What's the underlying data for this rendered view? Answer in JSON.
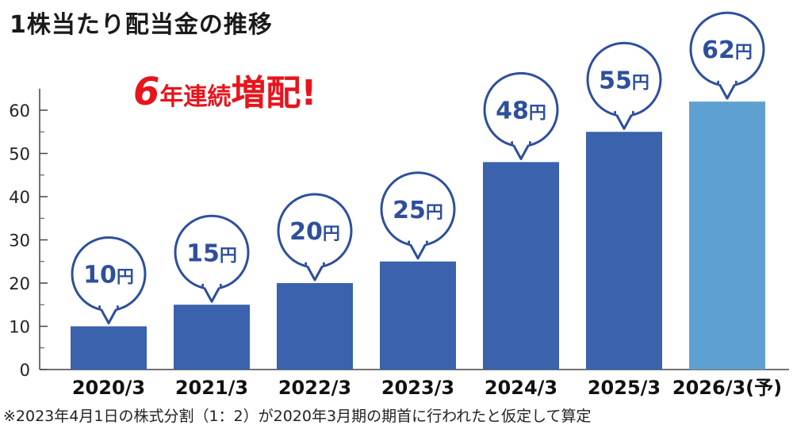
{
  "title": "1株当たり配当金の推移",
  "headline": {
    "count": "6",
    "mid": "年連続",
    "word": "増配",
    "mark": "!"
  },
  "footnote": "※2023年4月1日の株式分割（1：2）が2020年3月期の期首に行われたと仮定して算定",
  "colors": {
    "actual": "#3a62ad",
    "forecast": "#5fa0d2",
    "bubble_stroke": "#2e4f9c",
    "headline": "#e8141c"
  },
  "chart_data": {
    "type": "bar",
    "categories": [
      "2020/3",
      "2021/3",
      "2022/3",
      "2023/3",
      "2024/3",
      "2025/3",
      "2026/3(予)"
    ],
    "values": [
      10,
      15,
      20,
      25,
      48,
      55,
      62
    ],
    "value_labels": [
      "10",
      "15",
      "20",
      "25",
      "48",
      "55",
      "62"
    ],
    "unit": "円",
    "forecast": [
      false,
      false,
      false,
      false,
      false,
      false,
      true
    ],
    "ylim": [
      0,
      65
    ],
    "yticks": [
      0,
      10,
      20,
      30,
      40,
      50,
      60
    ],
    "ytick_labels": [
      "0",
      "10",
      "20",
      "30",
      "40",
      "50",
      "60"
    ],
    "title": "1株当たり配当金の推移",
    "xlabel": "",
    "ylabel": "",
    "grid": false,
    "legend": "none"
  }
}
